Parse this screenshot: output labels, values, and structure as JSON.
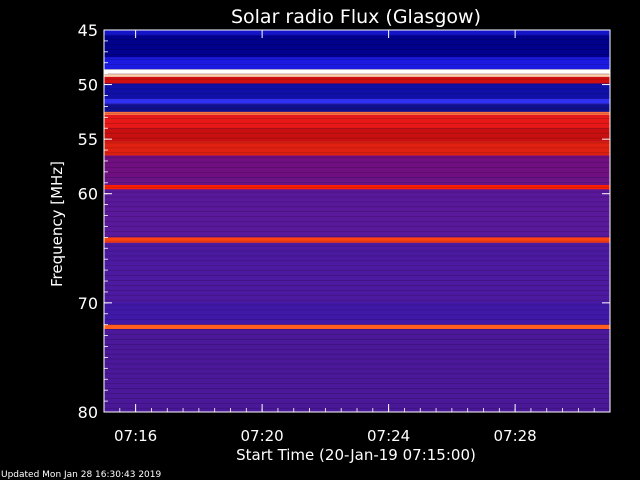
{
  "chart_data": {
    "type": "heatmap",
    "title": "Solar radio Flux (Glasgow)",
    "xlabel": "Start Time (20-Jan-19 07:15:00)",
    "ylabel": "Frequency [MHz]",
    "x_range_minutes_after_start": [
      0,
      16
    ],
    "x_ticks": [
      {
        "label": "07:16",
        "minute": 1
      },
      {
        "label": "07:20",
        "minute": 5
      },
      {
        "label": "07:24",
        "minute": 9
      },
      {
        "label": "07:28",
        "minute": 13
      }
    ],
    "ylim": [
      45,
      80
    ],
    "y_inverted": true,
    "y_ticks": [
      45,
      50,
      55,
      60,
      70,
      80
    ],
    "bands": [
      {
        "from": 45.0,
        "to": 45.5,
        "color": "#1414c8"
      },
      {
        "from": 45.5,
        "to": 47.5,
        "color": "#00008c"
      },
      {
        "from": 47.5,
        "to": 48.6,
        "color": "#1a1ae0"
      },
      {
        "from": 48.6,
        "to": 49.0,
        "color": "#ffffff"
      },
      {
        "from": 49.0,
        "to": 49.3,
        "color": "#ffd0b0"
      },
      {
        "from": 49.3,
        "to": 49.9,
        "color": "#d01010"
      },
      {
        "from": 49.9,
        "to": 51.3,
        "color": "#1010a8"
      },
      {
        "from": 51.3,
        "to": 51.8,
        "color": "#3030f0"
      },
      {
        "from": 51.8,
        "to": 52.5,
        "color": "#10108c"
      },
      {
        "from": 52.5,
        "to": 52.8,
        "color": "#ff7040"
      },
      {
        "from": 52.8,
        "to": 54.0,
        "color": "#e81818"
      },
      {
        "from": 54.0,
        "to": 55.2,
        "color": "#c81010"
      },
      {
        "from": 55.2,
        "to": 56.5,
        "color": "#e02010"
      },
      {
        "from": 56.5,
        "to": 58.5,
        "color": "#701080"
      },
      {
        "from": 58.5,
        "to": 59.2,
        "color": "#6a1488"
      },
      {
        "from": 59.2,
        "to": 59.6,
        "color": "#ff2000"
      },
      {
        "from": 59.6,
        "to": 64.0,
        "color": "#5a189a"
      },
      {
        "from": 64.0,
        "to": 64.5,
        "color": "#ff4010"
      },
      {
        "from": 64.5,
        "to": 70.0,
        "color": "#4c1aa0"
      },
      {
        "from": 70.0,
        "to": 72.0,
        "color": "#4018a8"
      },
      {
        "from": 72.0,
        "to": 72.4,
        "color": "#ff6020"
      },
      {
        "from": 72.4,
        "to": 80.0,
        "color": "#4a1898"
      }
    ],
    "legend": false
  },
  "footer": "Updated Mon Jan 28 16:30:43 2019"
}
